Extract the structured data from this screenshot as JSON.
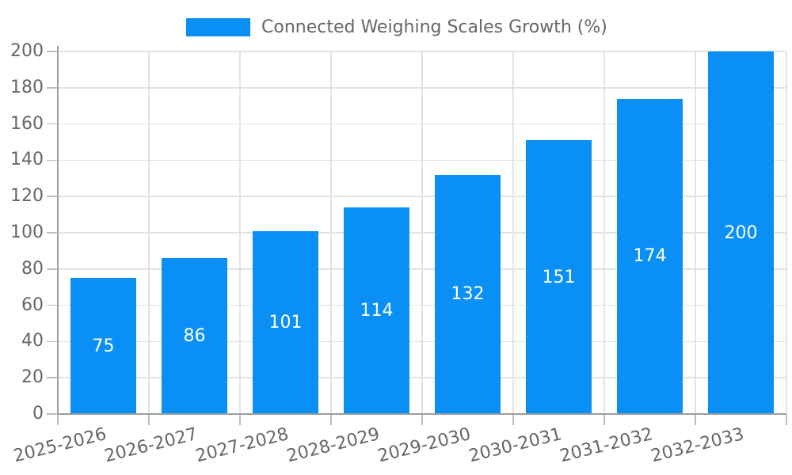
{
  "legend": {
    "label": "Connected Weighing Scales Growth (%)"
  },
  "chart_data": {
    "type": "bar",
    "title": "Connected Weighing Scales Growth (%)",
    "categories": [
      "2025-2026",
      "2026-2027",
      "2027-2028",
      "2028-2029",
      "2029-2030",
      "2030-2031",
      "2031-2032",
      "2032-2033"
    ],
    "values": [
      75,
      86,
      101,
      114,
      132,
      151,
      174,
      200
    ],
    "series": [
      {
        "name": "Connected Weighing Scales Growth (%)",
        "values": [
          75,
          86,
          101,
          114,
          132,
          151,
          174,
          200
        ]
      }
    ],
    "xlabel": "",
    "ylabel": "",
    "ylim": [
      0,
      200
    ],
    "yticks": [
      0,
      20,
      40,
      60,
      80,
      100,
      120,
      140,
      160,
      180,
      200
    ],
    "grid": "both",
    "legend_position": "top-center",
    "bar_labels": "inside-center",
    "colors": {
      "bar": "#0a90f5",
      "bar_label": "#ffffff",
      "axis_text": "#666666",
      "grid_line": "#e2e2e2",
      "axis_line": "#9c9c9c",
      "tick_line": "#bdbdbd",
      "background": "#ffffff"
    }
  }
}
